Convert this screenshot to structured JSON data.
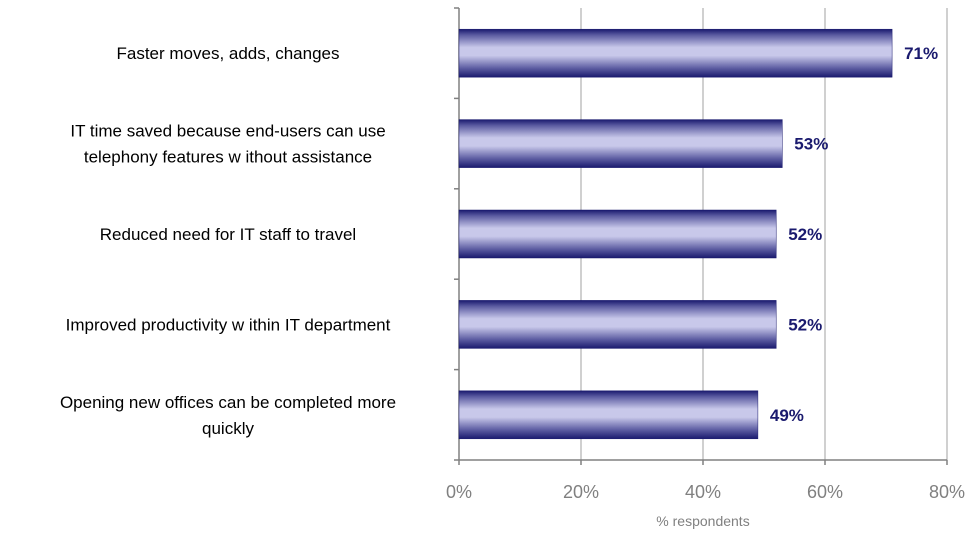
{
  "chart_data": {
    "type": "bar",
    "orientation": "horizontal",
    "categories": [
      [
        "Faster moves, adds, changes"
      ],
      [
        "IT time saved because end-users can use",
        "telephony features w ithout assistance"
      ],
      [
        "Reduced need for IT staff to travel"
      ],
      [
        "Improved productivity w ithin IT department"
      ],
      [
        "Opening new  offices can be completed more",
        "quickly"
      ]
    ],
    "values": [
      71,
      53,
      52,
      52,
      49
    ],
    "data_labels": [
      "71%",
      "53%",
      "52%",
      "52%",
      "49%"
    ],
    "xlim": [
      0,
      80
    ],
    "xticks": [
      0,
      20,
      40,
      60,
      80
    ],
    "xtick_labels": [
      "0%",
      "20%",
      "40%",
      "60%",
      "80%"
    ],
    "xlabel": "% respondents",
    "ylabel": "",
    "title": "",
    "grid": true,
    "legend": "none",
    "colors": {
      "bar_edge": "#1a1a6e",
      "bar_light": "#c8c8ea",
      "bar_dark": "#1a1a6e",
      "grid": "#c0c0c0",
      "axis": "#808080",
      "data_label": "#1a1a6e"
    }
  }
}
